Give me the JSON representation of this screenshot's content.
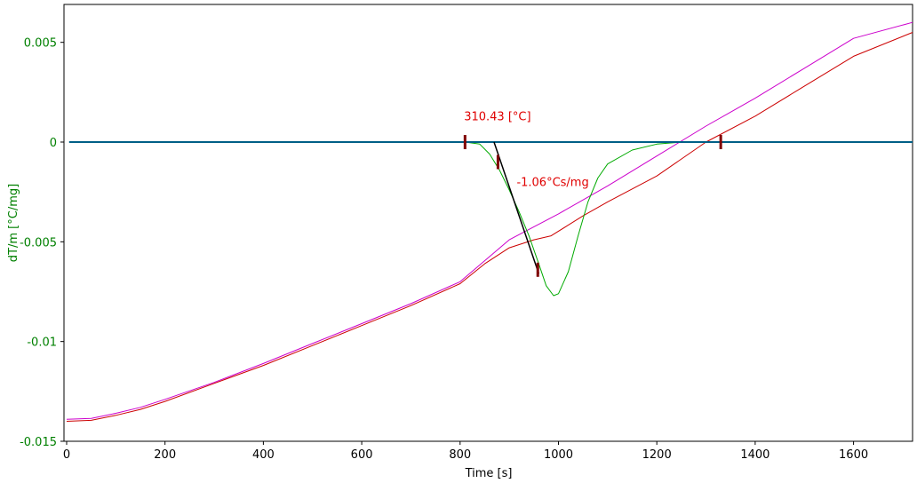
{
  "chart_data": {
    "type": "line",
    "xlabel": "Time [s]",
    "ylabel": "dT/m  [°C/mg]",
    "xlim": [
      0,
      1720
    ],
    "ylim": [
      -0.015,
      0.0069
    ],
    "x_ticks": [
      0,
      200,
      400,
      600,
      800,
      1000,
      1200,
      1400,
      1600
    ],
    "x_tick_labels": [
      "0",
      "200",
      "400",
      "600",
      "800",
      "1000",
      "1200",
      "1400",
      "1600"
    ],
    "y_ticks": [
      0.005,
      0,
      -0.005,
      -0.01,
      -0.015
    ],
    "y_tick_labels": [
      "0.005",
      "0",
      "-0.005",
      "-0.01",
      "-0.015"
    ],
    "grid": false,
    "colors": {
      "axis_text": "#008000",
      "annotation": "#e00000",
      "baseline": "#005f86",
      "magenta": "#cc00cc",
      "red": "#cc0000",
      "green": "#00aa00",
      "tangent": "#000000",
      "marker": "#800000"
    },
    "series": [
      {
        "color": "magenta",
        "x": [
          0,
          50,
          100,
          150,
          200,
          300,
          400,
          500,
          600,
          700,
          800,
          900,
          1000,
          1100,
          1200,
          1300,
          1400,
          1500,
          1600,
          1720
        ],
        "y": [
          -0.0139,
          -0.01385,
          -0.0136,
          -0.0133,
          -0.0129,
          -0.01205,
          -0.0111,
          -0.0101,
          -0.0091,
          -0.0081,
          -0.007,
          -0.0049,
          -0.0036,
          -0.0022,
          -0.0007,
          0.0008,
          0.0022,
          0.0037,
          0.0052,
          0.006
        ]
      },
      {
        "color": "red",
        "x": [
          0,
          50,
          100,
          150,
          200,
          300,
          400,
          500,
          600,
          700,
          800,
          850,
          900,
          950,
          985,
          1050,
          1100,
          1200,
          1300,
          1400,
          1500,
          1600,
          1720
        ],
        "y": [
          -0.014,
          -0.01395,
          -0.0137,
          -0.0134,
          -0.013,
          -0.0121,
          -0.0112,
          -0.0102,
          -0.0092,
          -0.0082,
          -0.0071,
          -0.0061,
          -0.0053,
          -0.0049,
          -0.0047,
          -0.0037,
          -0.003,
          -0.0017,
          0.0,
          0.0013,
          0.0028,
          0.0043,
          0.0055
        ]
      },
      {
        "color": "green",
        "x": [
          810,
          840,
          860,
          880,
          900,
          920,
          940,
          960,
          975,
          990,
          1000,
          1020,
          1040,
          1060,
          1080,
          1100,
          1150,
          1200,
          1250,
          1330
        ],
        "y": [
          0,
          -0.0001,
          -0.0006,
          -0.0014,
          -0.0024,
          -0.0035,
          -0.0047,
          -0.0061,
          -0.0072,
          -0.0077,
          -0.0076,
          -0.0065,
          -0.0047,
          -0.003,
          -0.0018,
          -0.0011,
          -0.0004,
          -0.0001,
          0,
          0
        ]
      },
      {
        "color": "baseline",
        "x": [
          5,
          1720
        ],
        "y": [
          0,
          0
        ]
      }
    ],
    "tangent_line": {
      "x": [
        869,
        960
      ],
      "y": [
        0,
        -0.0066
      ]
    },
    "markers": [
      {
        "x": 810,
        "y": 0
      },
      {
        "x": 877,
        "y": -0.001
      },
      {
        "x": 958,
        "y": -0.0064
      },
      {
        "x": 1330,
        "y": 0
      }
    ],
    "annotations": [
      {
        "text": "310.43 [°C]",
        "x": 808,
        "y": 0.0011
      },
      {
        "text": "-1.06°Cs/mg",
        "x": 915,
        "y": -0.0022
      }
    ]
  }
}
